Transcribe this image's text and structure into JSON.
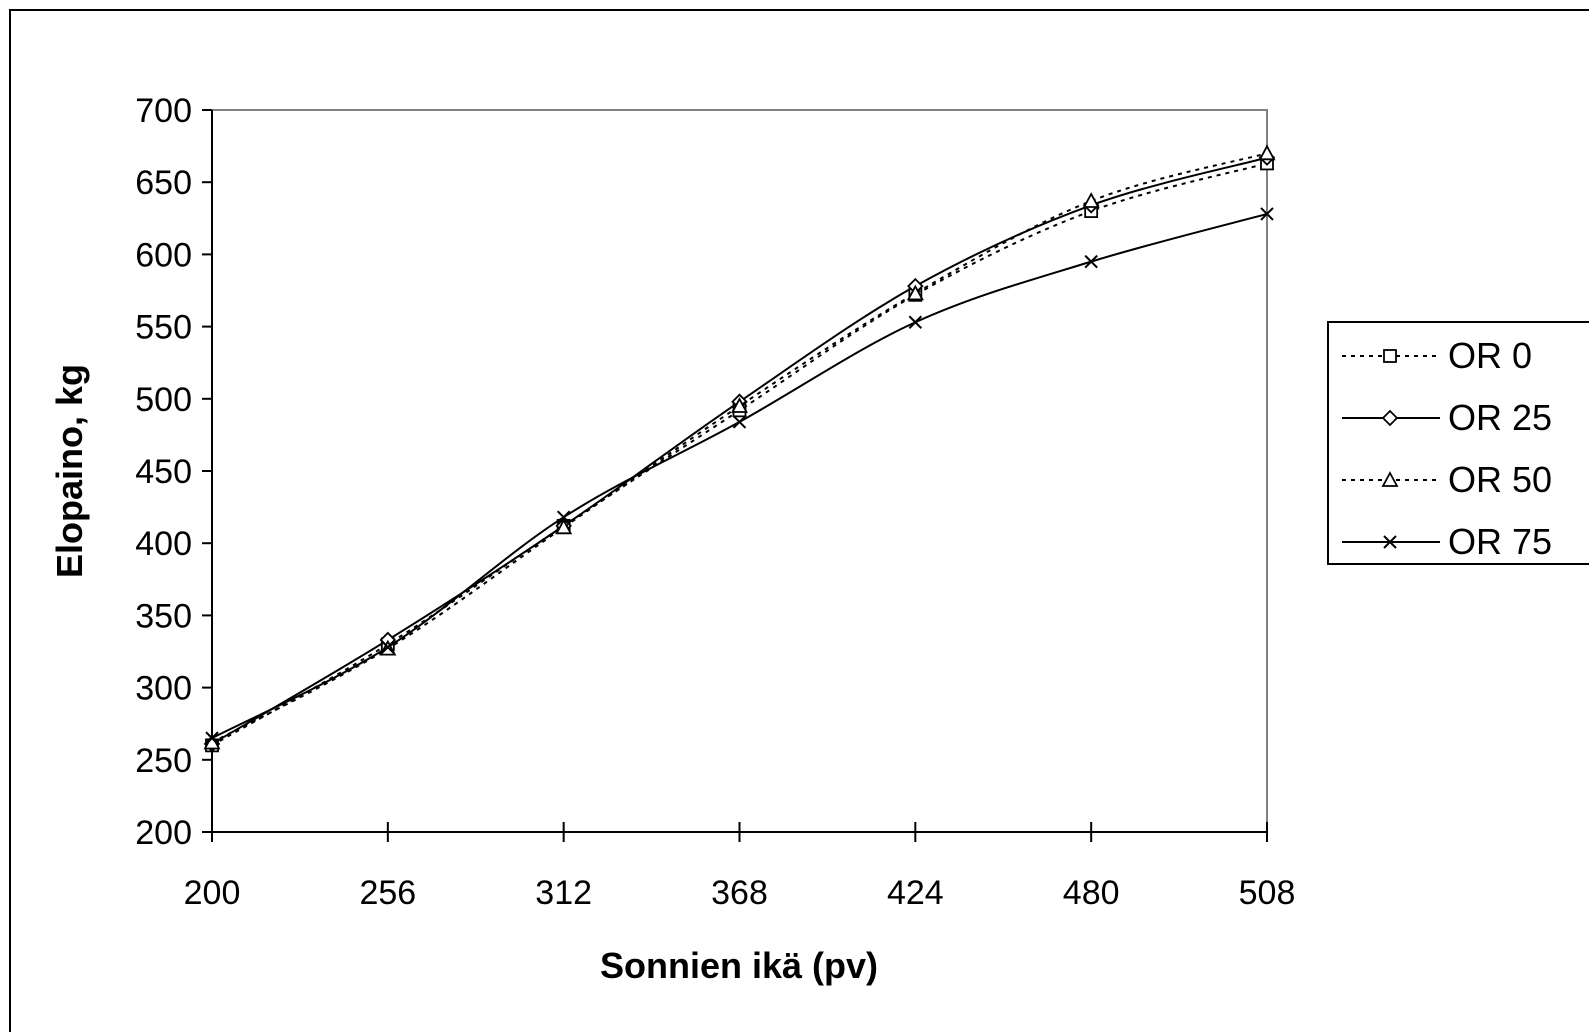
{
  "chart_data": {
    "type": "line",
    "title": "",
    "xlabel": "Sonnien ikä (pv)",
    "ylabel": "Elopaino, kg",
    "x_ticks": [
      "200",
      "256",
      "312",
      "368",
      "424",
      "480",
      "508"
    ],
    "y_ticks": [
      200,
      250,
      300,
      350,
      400,
      450,
      500,
      550,
      600,
      650,
      700
    ],
    "ylim": [
      200,
      700
    ],
    "grid": false,
    "legend_position": "right",
    "series": [
      {
        "name": "OR 0",
        "line": "dotted",
        "marker": "square",
        "values": [
          260,
          330,
          412,
          492,
          572,
          630,
          663
        ]
      },
      {
        "name": "OR 25",
        "line": "solid",
        "marker": "diamond",
        "values": [
          261,
          333,
          412,
          498,
          578,
          634,
          667
        ]
      },
      {
        "name": "OR 50",
        "line": "dotted",
        "marker": "triangle",
        "values": [
          262,
          327,
          411,
          495,
          573,
          637,
          670
        ]
      },
      {
        "name": "OR 75",
        "line": "solid",
        "marker": "x",
        "values": [
          265,
          328,
          418,
          484,
          553,
          595,
          628
        ]
      }
    ]
  }
}
